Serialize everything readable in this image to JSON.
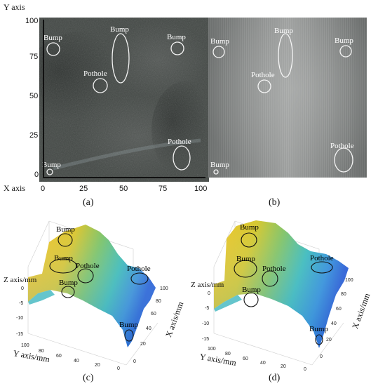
{
  "panel_a": {
    "y_axis_title": "Y axis",
    "x_axis_title": "X axis",
    "y_ticks": [
      "100",
      "75",
      "50",
      "25",
      "0"
    ],
    "x_ticks": [
      "0",
      "25",
      "50",
      "75",
      "100"
    ],
    "annotations": [
      "Bump",
      "Bump",
      "Bump",
      "Pothole",
      "Pothole",
      "Bump"
    ],
    "caption": "(a)"
  },
  "panel_b": {
    "annotations": [
      "Bump",
      "Bump",
      "Bump",
      "Pothole",
      "Pothole",
      "Bump"
    ],
    "caption": "(b)"
  },
  "panel_c": {
    "z_axis_title": "Z axis/mm",
    "y_axis_title": "Y axis/mm",
    "x_axis_title": "X axis/mm",
    "z_ticks": [
      "0",
      "-5",
      "-10",
      "-15"
    ],
    "y_ticks": [
      "100",
      "80",
      "60",
      "40",
      "20",
      "0"
    ],
    "x_ticks": [
      "100",
      "80",
      "60",
      "40",
      "20",
      "0"
    ],
    "annotations": [
      "Bump",
      "Bump",
      "Pothole",
      "Pothole",
      "Bump",
      "Bump"
    ],
    "caption": "(c)"
  },
  "panel_d": {
    "z_axis_title": "Z axis/mm",
    "y_axis_title": "Y axis/mm",
    "x_axis_title": "X axis/mm",
    "z_ticks": [
      "0",
      "-5",
      "-10",
      "-15"
    ],
    "y_ticks": [
      "100",
      "80",
      "60",
      "40",
      "20",
      "0"
    ],
    "x_ticks": [
      "100",
      "80",
      "60",
      "40",
      "20",
      "0"
    ],
    "annotations": [
      "Bump",
      "Bump",
      "Pothole",
      "Pothole",
      "Bump",
      "Bump"
    ],
    "caption": "(d)"
  },
  "colors": {
    "asphalt_dark": "#3b3f3c",
    "asphalt_gray": "#7a7c7b",
    "surface_yellow": "#f2c62a",
    "surface_green": "#6fbf6a",
    "surface_cyan": "#34b6c9",
    "surface_blue": "#2a62d6"
  }
}
